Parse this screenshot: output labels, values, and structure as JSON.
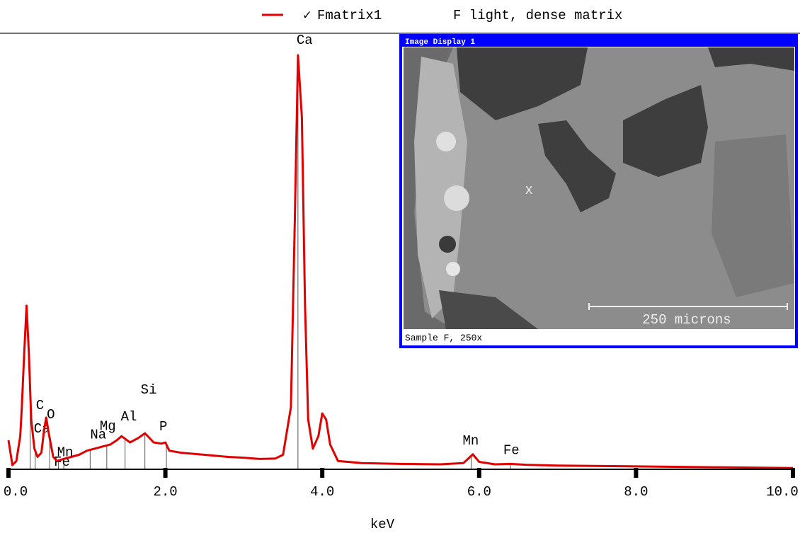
{
  "chart_data": {
    "type": "line",
    "legend_note": "F light, dense matrix",
    "x_label": "keV",
    "x": [
      0.0,
      0.05,
      0.1,
      0.15,
      0.17,
      0.2,
      0.23,
      0.26,
      0.29,
      0.33,
      0.37,
      0.42,
      0.45,
      0.48,
      0.52,
      0.57,
      0.62,
      0.7,
      0.8,
      0.9,
      1.0,
      1.1,
      1.2,
      1.3,
      1.38,
      1.44,
      1.55,
      1.65,
      1.74,
      1.85,
      1.95,
      2.0,
      2.05,
      2.2,
      2.5,
      2.8,
      3.0,
      3.2,
      3.4,
      3.5,
      3.6,
      3.65,
      3.69,
      3.74,
      3.78,
      3.82,
      3.88,
      3.95,
      4.0,
      4.05,
      4.1,
      4.2,
      4.5,
      5.0,
      5.5,
      5.8,
      5.92,
      6.0,
      6.2,
      6.4,
      6.6,
      7.0,
      8.0,
      9.0,
      10.0
    ],
    "series": [
      {
        "name": "Fmatrix1",
        "color": "#e00000",
        "values": [
          7,
          1,
          2,
          8,
          15,
          28,
          39.5,
          28,
          12,
          5,
          3,
          4,
          9,
          12.5,
          8,
          3,
          2,
          2.5,
          3,
          3.5,
          4.5,
          5,
          5.5,
          6,
          7,
          8,
          6.5,
          7.5,
          8.7,
          6.5,
          6.2,
          6.5,
          4.5,
          4,
          3.5,
          3,
          2.8,
          2.5,
          2.6,
          3.5,
          15,
          60,
          100,
          85,
          40,
          12,
          5,
          8,
          13.5,
          12,
          6,
          2,
          1.5,
          1.3,
          1.2,
          1.5,
          3.6,
          1.8,
          1.2,
          1.3,
          1.1,
          0.9,
          0.7,
          0.5,
          0.3
        ]
      }
    ],
    "markers": [
      {
        "label": "C",
        "x": 0.277
      },
      {
        "label": "Ca",
        "x": 0.341
      },
      {
        "label": "O",
        "x": 0.525
      },
      {
        "label": "Mn",
        "x": 0.637
      },
      {
        "label": "Fe",
        "x": 0.705
      },
      {
        "label": "Na",
        "x": 1.041
      },
      {
        "label": "Mg",
        "x": 1.253
      },
      {
        "label": "Al",
        "x": 1.486
      },
      {
        "label": "Si",
        "x": 1.739
      },
      {
        "label": "P",
        "x": 2.013
      },
      {
        "label": "Ca",
        "x": 3.69
      },
      {
        "label": "Mn",
        "x": 5.898
      },
      {
        "label": "Fe",
        "x": 6.398
      }
    ],
    "xlim": [
      0,
      10
    ],
    "ylim": [
      0,
      100
    ],
    "xticks": [
      {
        "value": 0,
        "label": "0.0"
      },
      {
        "value": 2,
        "label": "2.0"
      },
      {
        "value": 4,
        "label": "4.0"
      },
      {
        "value": 6,
        "label": "6.0"
      },
      {
        "value": 8,
        "label": "8.0"
      },
      {
        "value": 10,
        "label": "10.0"
      }
    ]
  },
  "inset": {
    "title": "Image Display 1",
    "caption": "Sample F, 250x",
    "scale_label": "250 microns",
    "marker": "X"
  }
}
